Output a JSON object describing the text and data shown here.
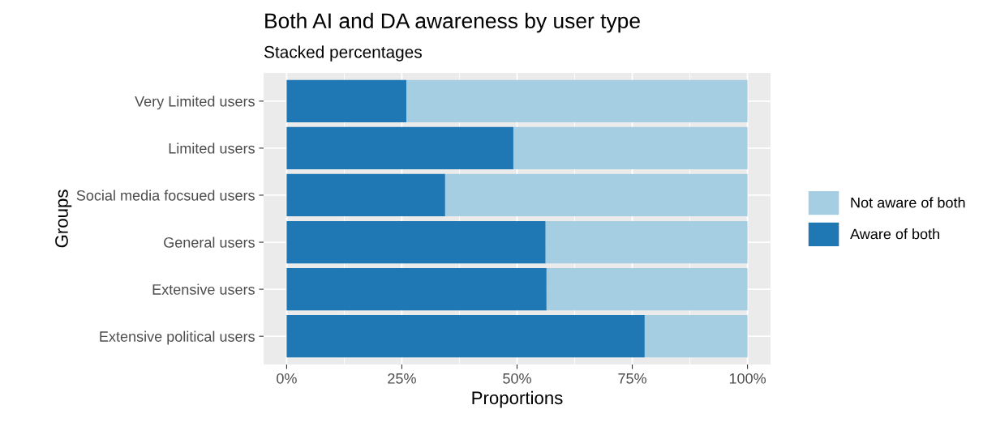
{
  "chart_data": {
    "type": "bar",
    "orientation": "horizontal",
    "stacked": true,
    "title": "Both AI and DA awareness by user type",
    "subtitle": "Stacked percentages",
    "xlabel": "Proportions",
    "ylabel": "Groups",
    "categories": [
      "Very Limited users",
      "Limited users",
      "Social media focsued users",
      "General users",
      "Extensive users",
      "Extensive political users"
    ],
    "series": [
      {
        "name": "Aware of both",
        "color": "#1f78b4",
        "values": [
          0.26,
          0.492,
          0.344,
          0.562,
          0.564,
          0.777
        ]
      },
      {
        "name": "Not aware of both",
        "color": "#a6cee3",
        "values": [
          0.74,
          0.508,
          0.656,
          0.438,
          0.436,
          0.223
        ]
      }
    ],
    "xlim": [
      -0.05,
      1.05
    ],
    "xticks": [
      {
        "value": 0,
        "label": "0%"
      },
      {
        "value": 0.25,
        "label": "25%"
      },
      {
        "value": 0.5,
        "label": "50%"
      },
      {
        "value": 0.75,
        "label": "75%"
      },
      {
        "value": 1,
        "label": "100%"
      }
    ],
    "grid": true,
    "legend": "right"
  }
}
